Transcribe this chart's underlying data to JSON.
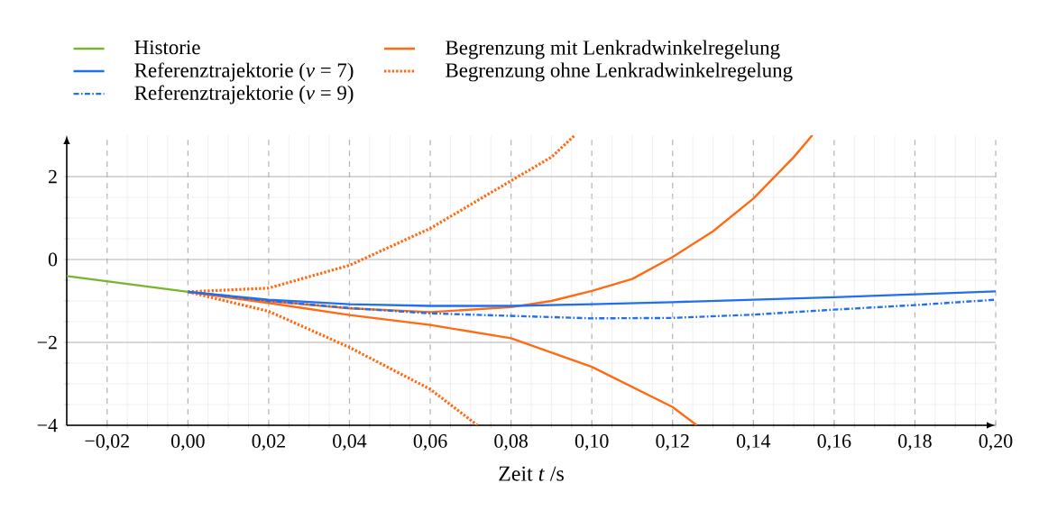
{
  "chart_data": {
    "type": "line",
    "xlabel": "Zeit *t* /s",
    "xlim": [
      -0.03,
      0.2
    ],
    "ylim": [
      -4,
      3
    ],
    "xticks": [
      {
        "value": -0.02,
        "label": "−0,02"
      },
      {
        "value": 0.0,
        "label": "0,00"
      },
      {
        "value": 0.02,
        "label": "0,02"
      },
      {
        "value": 0.04,
        "label": "0,04"
      },
      {
        "value": 0.06,
        "label": "0,06"
      },
      {
        "value": 0.08,
        "label": "0,08"
      },
      {
        "value": 0.1,
        "label": "0,10"
      },
      {
        "value": 0.12,
        "label": "0,12"
      },
      {
        "value": 0.14,
        "label": "0,14"
      },
      {
        "value": 0.16,
        "label": "0,16"
      },
      {
        "value": 0.18,
        "label": "0,18"
      },
      {
        "value": 0.2,
        "label": "0,20"
      }
    ],
    "yticks": [
      {
        "value": -4,
        "label": "−4"
      },
      {
        "value": -2,
        "label": "−2"
      },
      {
        "value": 0,
        "label": "0"
      },
      {
        "value": 2,
        "label": "2"
      }
    ],
    "grid": true,
    "legend": "top left",
    "marker": "none",
    "series": [
      {
        "name": "Historie",
        "color": "#7ab32e",
        "line_style": "solid",
        "x": [
          -0.03,
          0.0
        ],
        "values": [
          -0.4,
          -0.78
        ]
      },
      {
        "name": "Referenztrajektorie (*ν* = 7)",
        "color": "#1f6ff0",
        "line_style": "solid",
        "x": [
          0.0,
          0.02,
          0.04,
          0.06,
          0.08,
          0.1,
          0.12,
          0.14,
          0.16,
          0.18,
          0.2
        ],
        "values": [
          -0.78,
          -0.97,
          -1.08,
          -1.12,
          -1.12,
          -1.08,
          -1.03,
          -0.97,
          -0.91,
          -0.84,
          -0.77
        ]
      },
      {
        "name": "Referenztrajektorie (*ν* = 9)",
        "color": "#1f6ff0",
        "line_style": "dashdot",
        "x": [
          0.0,
          0.02,
          0.04,
          0.06,
          0.08,
          0.1,
          0.12,
          0.14,
          0.16,
          0.18,
          0.2
        ],
        "values": [
          -0.78,
          -1.0,
          -1.17,
          -1.3,
          -1.36,
          -1.42,
          -1.41,
          -1.33,
          -1.21,
          -1.1,
          -0.97
        ]
      },
      {
        "name": "Begrenzung mit Lenkradwinkelregelung",
        "color": "#ff6a13",
        "line_style": "solid",
        "x": [
          0.0,
          0.02,
          0.04,
          0.06,
          0.08,
          0.09,
          0.1,
          0.11,
          0.12,
          0.13,
          0.14,
          0.15,
          0.1546
        ],
        "values": [
          -0.78,
          -1.0,
          -1.18,
          -1.27,
          -1.15,
          -1.0,
          -0.76,
          -0.47,
          0.06,
          0.68,
          1.47,
          2.47,
          3.0
        ]
      },
      {
        "color": "#ff6a13",
        "line_style": "solid",
        "x": [
          0.0,
          0.02,
          0.04,
          0.06,
          0.08,
          0.1,
          0.12,
          0.126
        ],
        "values": [
          -0.78,
          -1.05,
          -1.34,
          -1.58,
          -1.9,
          -2.59,
          -3.56,
          -4.0
        ]
      },
      {
        "name": "Begrenzung ohne Lenkradwinkelregelung",
        "color": "#ff6a13",
        "line_style": "dotted",
        "x": [
          0.0,
          0.02,
          0.04,
          0.06,
          0.08,
          0.09,
          0.0958
        ],
        "values": [
          -0.78,
          -0.69,
          -0.14,
          0.75,
          1.9,
          2.47,
          3.0
        ]
      },
      {
        "color": "#ff6a13",
        "line_style": "dotted",
        "x": [
          0.0,
          0.02,
          0.04,
          0.06,
          0.0717
        ],
        "values": [
          -0.78,
          -1.25,
          -2.12,
          -3.13,
          -4.0
        ]
      }
    ]
  }
}
